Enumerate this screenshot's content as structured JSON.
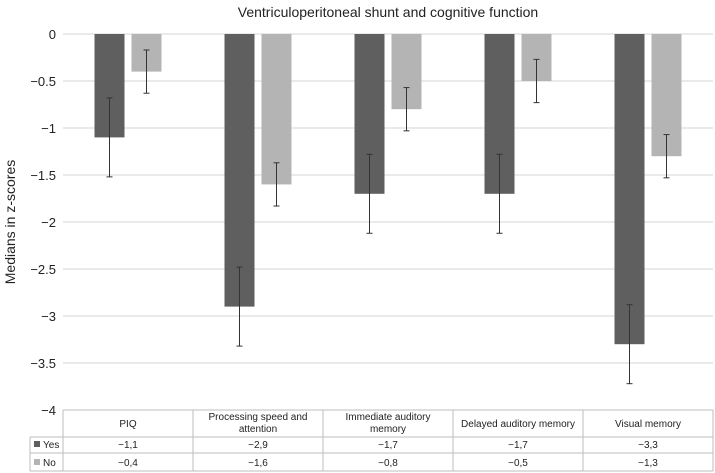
{
  "chart_data": {
    "type": "bar",
    "title": "Ventriculoperitoneal shunt and cognitive function",
    "xlabel": "",
    "ylabel": "Medians in z-scores",
    "ylim": [
      -4,
      0
    ],
    "yticks": [
      "0",
      "−0.5",
      "−1",
      "−1.5",
      "−2",
      "−2.5",
      "−3",
      "−3.5",
      "−4"
    ],
    "categories": [
      [
        "PIQ"
      ],
      [
        "Processing speed and",
        "attention"
      ],
      [
        "Immediate auditory",
        "memory"
      ],
      [
        "Delayed auditory memory"
      ],
      [
        "Visual memory"
      ]
    ],
    "series": [
      {
        "name": "Yes",
        "color": "#5f5f5f",
        "values": [
          -1.1,
          -2.9,
          -1.7,
          -1.7,
          -3.3
        ],
        "error": [
          0.42,
          0.42,
          0.42,
          0.42,
          0.42
        ],
        "labels": [
          "−1,1",
          "−2,9",
          "−1,7",
          "−1,7",
          "−3,3"
        ]
      },
      {
        "name": "No",
        "color": "#b4b4b4",
        "values": [
          -0.4,
          -1.6,
          -0.8,
          -0.5,
          -1.3
        ],
        "error": [
          0.23,
          0.23,
          0.23,
          0.23,
          0.23
        ],
        "labels": [
          "−0,4",
          "−1,6",
          "−0,8",
          "−0,5",
          "−1,3"
        ]
      }
    ],
    "grid": true,
    "legend": "data-table-left"
  }
}
